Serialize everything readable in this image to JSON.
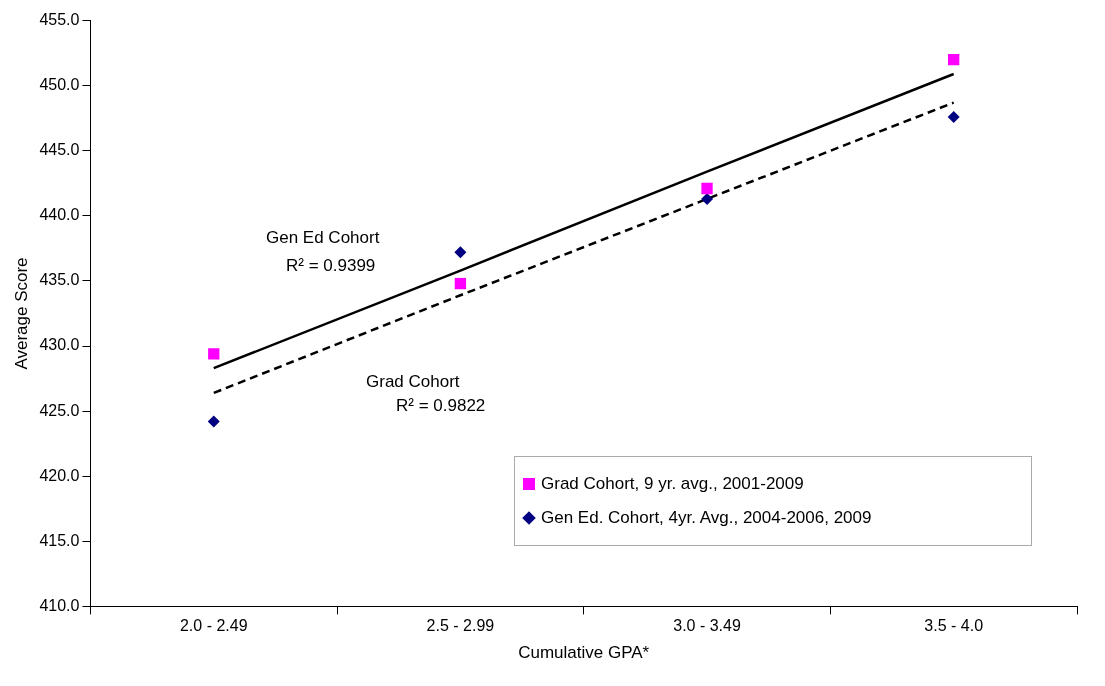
{
  "chart_data": {
    "type": "scatter",
    "xlabel": "Cumulative GPA*",
    "ylabel": "Average Score",
    "categories": [
      "2.0 - 2.49",
      "2.5 - 2.99",
      "3.0 - 3.49",
      "3.5 - 4.0"
    ],
    "ylim": [
      410,
      455
    ],
    "yticks": [
      {
        "value": 410,
        "label": "410.0"
      },
      {
        "value": 415,
        "label": "415.0"
      },
      {
        "value": 420,
        "label": "420.0"
      },
      {
        "value": 425,
        "label": "425.0"
      },
      {
        "value": 430,
        "label": "430.0"
      },
      {
        "value": 435,
        "label": "435.0"
      },
      {
        "value": 440,
        "label": "440.0"
      },
      {
        "value": 445,
        "label": "445.0"
      },
      {
        "value": 450,
        "label": "450.0"
      },
      {
        "value": 455,
        "label": "455.0"
      }
    ],
    "grid": false,
    "legend": "bottom right",
    "series": [
      {
        "name": "Grad Cohort, 9 yr. avg., 2001-2009",
        "type": "scatter",
        "marker": "square",
        "color": "#ff00ff",
        "values": [
          429.4,
          434.8,
          442.1,
          452.0
        ]
      },
      {
        "name": "Gen Ed. Cohort, 4yr. Avg., 2004-2006, 2009",
        "type": "scatter",
        "marker": "diamond",
        "color": "#000080",
        "values": [
          424.2,
          437.2,
          441.3,
          447.6
        ]
      },
      {
        "type": "line",
        "marker": "none",
        "line_style": "solid",
        "color": "#000000",
        "values": [
          428.3,
          435.8,
          443.4,
          450.9
        ]
      },
      {
        "type": "line",
        "marker": "none",
        "line_style": "dashed",
        "color": "#000000",
        "values": [
          426.4,
          433.9,
          441.3,
          448.7
        ]
      }
    ],
    "annotations": [
      "Gen Ed Cohort",
      "R² = 0.9399",
      "Grad Cohort",
      "R² = 0.9822"
    ]
  }
}
